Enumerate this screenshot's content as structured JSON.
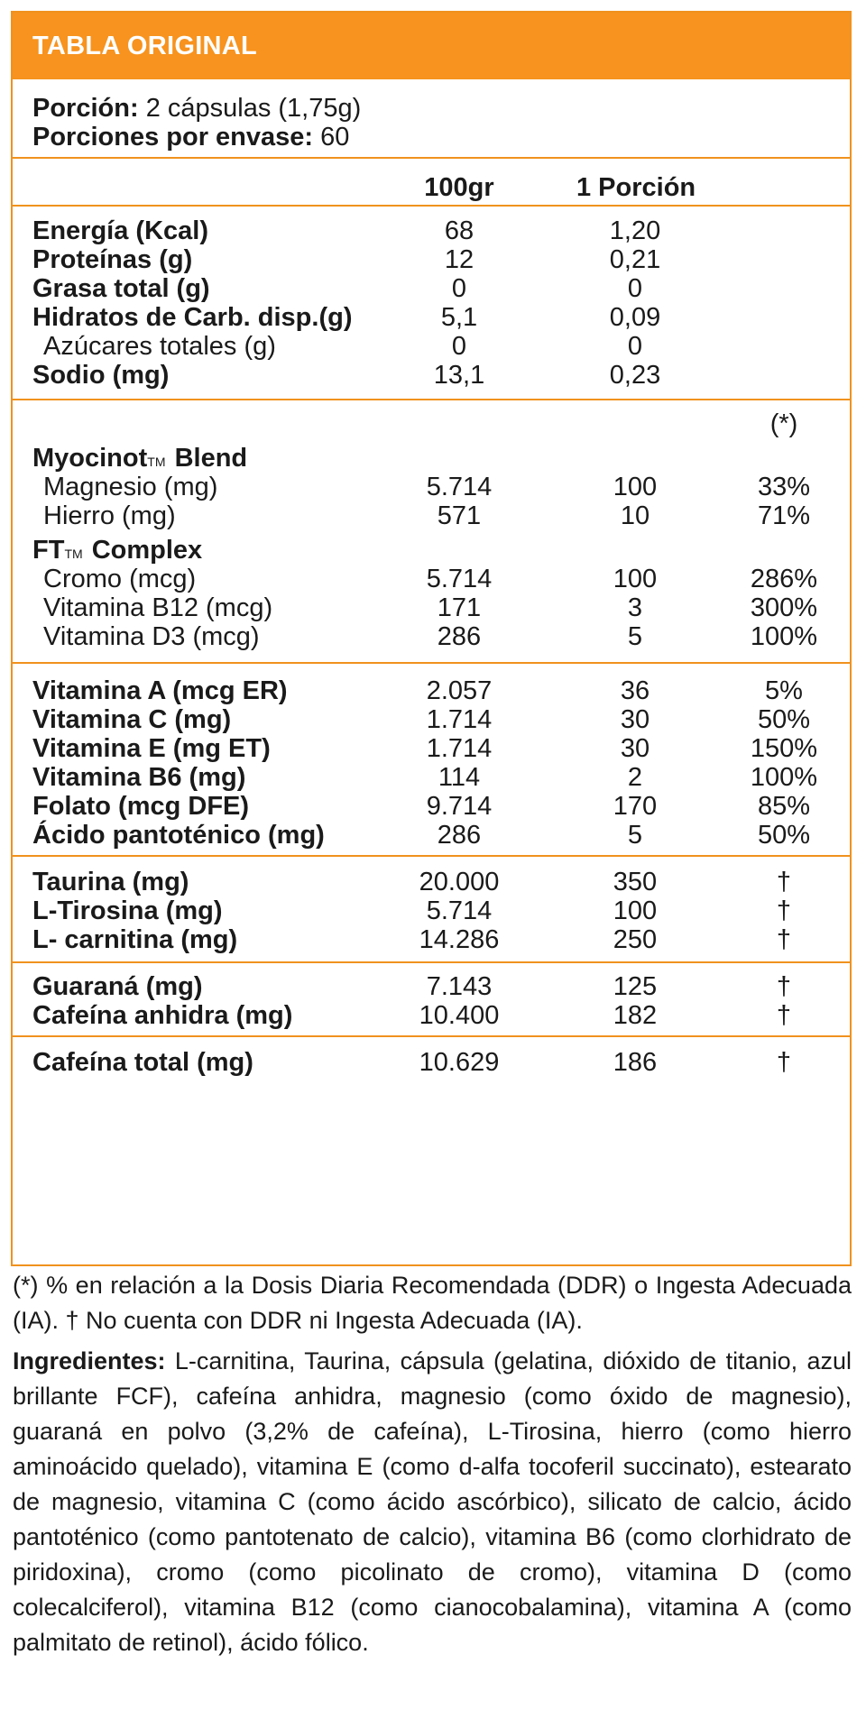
{
  "header": {
    "title": "TABLA ORIGINAL"
  },
  "serving": {
    "portion_label": "Porción:",
    "portion_value": "2 cápsulas (1,75g)",
    "per_container_label": "Porciones por envase:",
    "per_container_value": "60"
  },
  "columns": {
    "c1": "100gr",
    "c2": "1 Porción",
    "c3": "(*)"
  },
  "macros": [
    {
      "label": "Energía (Kcal)",
      "v100": "68",
      "vp": "1,20"
    },
    {
      "label": "Proteínas (g)",
      "v100": "12",
      "vp": "0,21"
    },
    {
      "label": "Grasa total (g)",
      "v100": "0",
      "vp": "0"
    },
    {
      "label": "Hidratos de Carb. disp.(g)",
      "v100": "5,1",
      "vp": "0,09"
    },
    {
      "label": "Azúcares totales (g)",
      "v100": "0",
      "vp": "0"
    },
    {
      "label": "Sodio (mg)",
      "v100": "13,1",
      "vp": "0,23"
    }
  ],
  "blends": {
    "myocinot": {
      "name": "Myocinot",
      "tm": "TM",
      "suffix": "Blend",
      "items": [
        {
          "label": "Magnesio (mg)",
          "v100": "5.714",
          "vp": "100",
          "pct": "33%"
        },
        {
          "label": "Hierro (mg)",
          "v100": "571",
          "vp": "10",
          "pct": "71%"
        }
      ]
    },
    "ft": {
      "name": "FT",
      "tm": "TM",
      "suffix": "Complex",
      "items": [
        {
          "label": "Cromo (mcg)",
          "v100": "5.714",
          "vp": "100",
          "pct": "286%"
        },
        {
          "label": "Vitamina B12 (mcg)",
          "v100": "171",
          "vp": "3",
          "pct": "300%"
        },
        {
          "label": "Vitamina D3 (mcg)",
          "v100": "286",
          "vp": "5",
          "pct": "100%"
        }
      ]
    }
  },
  "vitamins": [
    {
      "label": "Vitamina A (mcg ER)",
      "v100": "2.057",
      "vp": "36",
      "pct": "5%"
    },
    {
      "label": "Vitamina C (mg)",
      "v100": "1.714",
      "vp": "30",
      "pct": "50%"
    },
    {
      "label": "Vitamina E (mg ET)",
      "v100": "1.714",
      "vp": "30",
      "pct": "150%"
    },
    {
      "label": "Vitamina B6 (mg)",
      "v100": "114",
      "vp": "2",
      "pct": "100%"
    },
    {
      "label": "Folato (mcg DFE)",
      "v100": "9.714",
      "vp": "170",
      "pct": "85%"
    },
    {
      "label": "Ácido pantoténico (mg)",
      "v100": "286",
      "vp": "5",
      "pct": "50%"
    }
  ],
  "aminos": [
    {
      "label": "Taurina (mg)",
      "v100": "20.000",
      "vp": "350",
      "pct": "†"
    },
    {
      "label": "L-Tirosina (mg)",
      "v100": "5.714",
      "vp": "100",
      "pct": "†"
    },
    {
      "label": "L- carnitina (mg)",
      "v100": "14.286",
      "vp": "250",
      "pct": "†"
    }
  ],
  "stimulants": [
    {
      "label": "Guaraná  (mg)",
      "v100": "7.143",
      "vp": "125",
      "pct": "†"
    },
    {
      "label": "Cafeína anhidra (mg)",
      "v100": "10.400",
      "vp": "182",
      "pct": "†"
    }
  ],
  "total_caffeine": {
    "label": "Cafeína total (mg)",
    "v100": "10.629",
    "vp": "186",
    "pct": "†"
  },
  "footnote": "(*) % en relación a la Dosis Diaria Recomendada (DDR) o Ingesta Adecuada (IA). † No cuenta con DDR ni Ingesta Adecuada (IA).",
  "ingredients": {
    "label": "Ingredientes:",
    "text": " L-carnitina, Taurina, cápsula (gelatina, dióxido de titanio, azul brillante FCF), cafeína anhidra, magnesio (como óxido de magnesio), guaraná en polvo (3,2% de cafeína), L-Tirosina, hierro (como hierro aminoácido quelado), vitamina E (como d-alfa tocoferil succinato), estearato de magnesio, vitamina C (como ácido ascórbico), silicato de calcio, ácido pantoténico (como pantotenato de calcio), vitamina B6 (como clorhidrato de piridoxina), cromo (como picolinato de cromo), vitamina D (como colecalciferol), vitamina B12 (como cianocobalamina), vitamina A (como palmitato de retinol), ácido fólico."
  }
}
